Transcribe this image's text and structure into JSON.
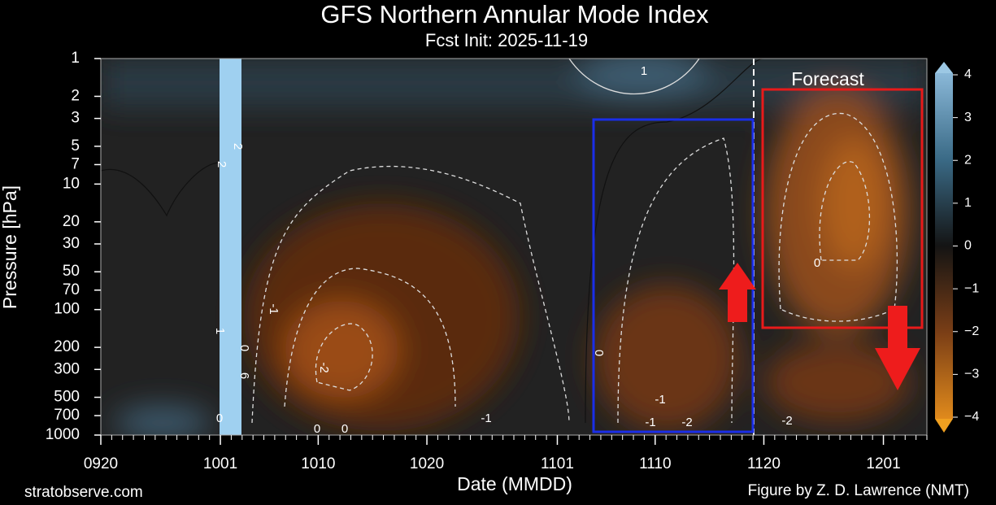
{
  "chart_data": {
    "type": "contour",
    "title": "GFS Northern Annular Mode Index",
    "subtitle": "Fcst Init: 2025-11-19",
    "x_label": "Date (MMDD)",
    "y_label": "Pressure [hPa]",
    "xlim": [
      "0920",
      "1205"
    ],
    "xticks": [
      "0920",
      "1001",
      "1010",
      "1020",
      "1101",
      "1110",
      "1120",
      "1201"
    ],
    "ylim": [
      1000,
      1
    ],
    "yticks": [
      1,
      2,
      3,
      5,
      7,
      10,
      20,
      30,
      50,
      70,
      100,
      200,
      300,
      500,
      700,
      1000
    ],
    "y_scale": "log",
    "colorbar": {
      "lim": [
        -4,
        4
      ],
      "ticks": [
        4,
        3,
        2,
        1,
        0,
        {
          "value": -1,
          "label": "−1"
        },
        {
          "value": -2,
          "label": "−2"
        },
        {
          "value": -3,
          "label": "−3"
        },
        {
          "value": -4,
          "label": "−4"
        }
      ]
    },
    "forecast_start": "1119",
    "contour_labels": [
      "1",
      "2",
      "2",
      "-1",
      "1",
      "0",
      "6",
      "-2",
      "0",
      "0",
      "0",
      "0",
      "-1",
      "-1",
      "-1",
      "-2",
      "0",
      "-2"
    ],
    "annotations": [
      "Forecast",
      "stratobserve.com",
      "Figure by Z. D. Lawrence (NMT)"
    ]
  }
}
